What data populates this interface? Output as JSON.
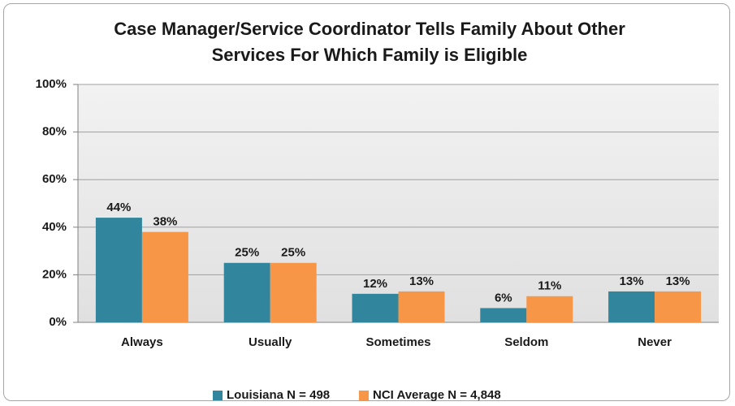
{
  "chart_data": {
    "type": "bar",
    "title": "Case Manager/Service Coordinator Tells Family About Other Services For Which Family is Eligible",
    "categories": [
      "Always",
      "Usually",
      "Sometimes",
      "Seldom",
      "Never"
    ],
    "series": [
      {
        "name": "Louisiana N = 498",
        "color": "#31859c",
        "values": [
          44,
          25,
          12,
          6,
          13
        ],
        "value_labels": [
          "44%",
          "25%",
          "12%",
          "6%",
          "13%"
        ]
      },
      {
        "name": "NCI Average N = 4,848",
        "color": "#f79646",
        "values": [
          38,
          25,
          13,
          11,
          13
        ],
        "value_labels": [
          "38%",
          "25%",
          "13%",
          "11%",
          "13%"
        ]
      }
    ],
    "ylim": [
      0,
      100
    ],
    "yticks": [
      {
        "value": 0,
        "label": "0%"
      },
      {
        "value": 20,
        "label": "20%"
      },
      {
        "value": 40,
        "label": "40%"
      },
      {
        "value": 60,
        "label": "60%"
      },
      {
        "value": 80,
        "label": "80%"
      },
      {
        "value": 100,
        "label": "100%"
      }
    ],
    "grid": true,
    "legend": "bottom"
  }
}
